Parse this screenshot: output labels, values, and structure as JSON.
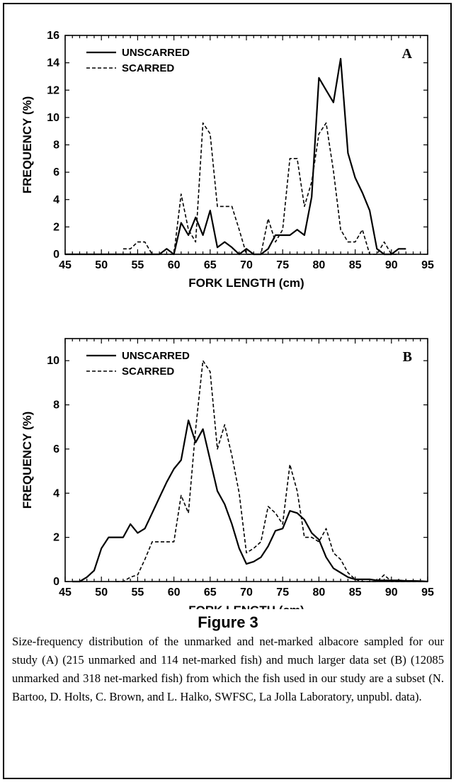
{
  "chart_data": [
    {
      "type": "line",
      "panel_label": "A",
      "xlabel": "FORK LENGTH (cm)",
      "ylabel": "FREQUENCY (%)",
      "xlim": [
        45,
        95
      ],
      "ylim": [
        0,
        16
      ],
      "xticks": [
        45,
        50,
        55,
        60,
        65,
        70,
        75,
        80,
        85,
        90,
        95
      ],
      "yticks": [
        0,
        2,
        4,
        6,
        8,
        10,
        12,
        14,
        16
      ],
      "grid": false,
      "legend_position": "top-left",
      "series": [
        {
          "name": "UNSCARRED",
          "style": "solid",
          "x": [
            45,
            55,
            58,
            59,
            60,
            61,
            62,
            63,
            64,
            65,
            66,
            67,
            68,
            69,
            70,
            71,
            72,
            73,
            74,
            75,
            76,
            77,
            78,
            79,
            80,
            81,
            82,
            83,
            84,
            85,
            86,
            87,
            88,
            89,
            90,
            91,
            92
          ],
          "y": [
            0,
            0,
            0,
            0.4,
            0,
            2.3,
            1.4,
            2.7,
            1.4,
            3.2,
            0.5,
            0.9,
            0.5,
            0,
            0.4,
            0,
            0,
            0.4,
            1.4,
            1.4,
            1.4,
            1.8,
            1.4,
            4.2,
            12.9,
            12,
            11.1,
            14.3,
            7.4,
            5.6,
            4.5,
            3.2,
            0.4,
            0,
            0,
            0.4,
            0.4
          ]
        },
        {
          "name": "SCARRED",
          "style": "dashed",
          "x": [
            53,
            54,
            55,
            56,
            57,
            58,
            59,
            60,
            61,
            62,
            63,
            64,
            65,
            66,
            67,
            68,
            69,
            70,
            71,
            72,
            73,
            74,
            75,
            76,
            77,
            78,
            79,
            80,
            81,
            82,
            83,
            84,
            85,
            86,
            87,
            88,
            89,
            90,
            91
          ],
          "y": [
            0.4,
            0.4,
            0.9,
            0.9,
            0,
            0,
            0,
            0,
            4.4,
            1.8,
            0.9,
            9.6,
            8.8,
            3.5,
            3.5,
            3.5,
            1.8,
            0,
            0,
            0,
            2.6,
            0.9,
            1.8,
            7,
            7,
            3.5,
            5.3,
            8.8,
            9.6,
            6.1,
            1.8,
            0.9,
            0.9,
            1.8,
            0,
            0,
            0.9,
            0,
            0
          ]
        }
      ]
    },
    {
      "type": "line",
      "panel_label": "B",
      "xlabel": "FORK LENGTH (cm)",
      "ylabel": "FREQUENCY (%)",
      "xlim": [
        45,
        95
      ],
      "ylim": [
        0,
        11
      ],
      "xticks": [
        45,
        50,
        55,
        60,
        65,
        70,
        75,
        80,
        85,
        90,
        95
      ],
      "yticks": [
        0,
        2,
        4,
        6,
        8,
        10
      ],
      "grid": false,
      "legend_position": "top-left",
      "series": [
        {
          "name": "UNSCARRED",
          "style": "solid",
          "x": [
            46,
            47,
            48,
            49,
            50,
            51,
            52,
            53,
            54,
            55,
            56,
            57,
            58,
            59,
            60,
            61,
            62,
            63,
            64,
            65,
            66,
            67,
            68,
            69,
            70,
            71,
            72,
            73,
            74,
            75,
            76,
            77,
            78,
            79,
            80,
            81,
            82,
            83,
            84,
            85,
            86,
            87,
            88,
            89,
            90,
            91,
            92,
            93,
            94,
            95
          ],
          "y": [
            0,
            0,
            0.2,
            0.5,
            1.5,
            2,
            2,
            2,
            2.6,
            2.2,
            2.4,
            3.1,
            3.8,
            4.5,
            5.1,
            5.5,
            7.3,
            6.3,
            6.9,
            5.5,
            4.1,
            3.5,
            2.6,
            1.5,
            0.8,
            0.9,
            1.1,
            1.6,
            2.3,
            2.4,
            3.2,
            3.1,
            2.8,
            2.2,
            1.9,
            1.1,
            0.6,
            0.4,
            0.2,
            0.1,
            0.1,
            0.1,
            0.05,
            0.05,
            0.05,
            0.05,
            0.03,
            0.03,
            0.02,
            0
          ]
        },
        {
          "name": "SCARRED",
          "style": "dashed",
          "x": [
            52,
            53,
            54,
            55,
            56,
            57,
            58,
            59,
            60,
            61,
            62,
            63,
            64,
            65,
            66,
            67,
            68,
            69,
            70,
            71,
            72,
            73,
            74,
            75,
            76,
            77,
            78,
            79,
            80,
            81,
            82,
            83,
            84,
            85,
            86,
            87,
            88,
            89,
            90,
            91,
            92,
            93,
            94,
            95
          ],
          "y": [
            0,
            0,
            0.2,
            0.3,
            1,
            1.8,
            1.8,
            1.8,
            1.8,
            3.9,
            3.1,
            6.9,
            10,
            9.5,
            6,
            7.1,
            5.7,
            4,
            1.3,
            1.5,
            1.8,
            3.4,
            3.1,
            2.6,
            5.3,
            4.1,
            2,
            2,
            1.8,
            2.4,
            1.3,
            1,
            0.4,
            0.1,
            0,
            0,
            0,
            0.3,
            0,
            0,
            0,
            0,
            0,
            0
          ]
        }
      ]
    }
  ],
  "figure": {
    "title": "Figure 3",
    "caption": "Size-frequency distribution of the unmarked and net-marked albacore sampled for our study (A) (215 unmarked and 114 net-marked fish) and much larger data set (B) (12085 unmarked and 318 net-marked fish) from which the fish used in our study are a subset (N. Bartoo, D. Holts, C. Brown, and L. Halko, SWFSC, La Jolla Laboratory, unpubl. data)."
  }
}
